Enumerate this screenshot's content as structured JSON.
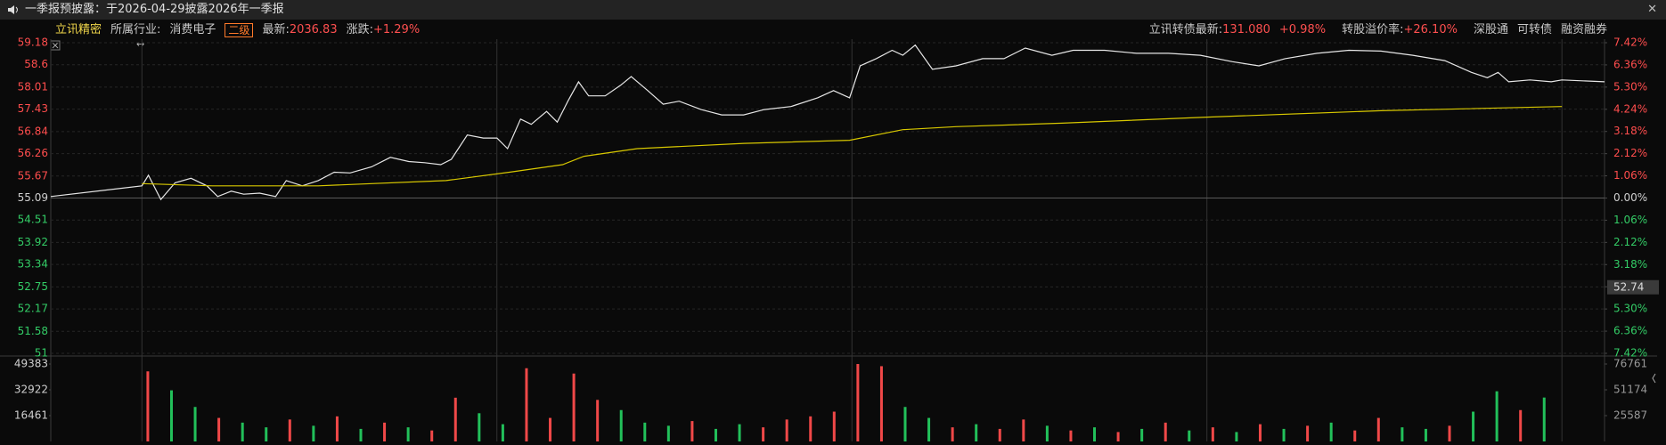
{
  "banner": {
    "text": "一季报预披露：于2026-04-29披露2026年一季报"
  },
  "header": {
    "stock_name": "立讯精密",
    "industry_label": "所属行业:",
    "industry": "消费电子",
    "level_badge": "二级",
    "latest_label": "最新:",
    "latest_value": "2036.83",
    "change_label": "涨跌:",
    "change_value": "+1.29%",
    "bond_label": "立讯转债最新:",
    "bond_price": "131.080",
    "bond_change": "+0.98%",
    "premium_label": "转股溢价率:",
    "premium_value": "+26.10%",
    "tags": [
      "深股通",
      "可转债",
      "融资融券"
    ]
  },
  "chart_data": {
    "type": "line",
    "xlim": [
      -15.4,
      247.2
    ],
    "xticks": [
      0,
      60,
      120,
      180,
      240
    ],
    "ylim": [
      51.0,
      59.18
    ],
    "yticks": [
      59.18,
      58.6,
      58.01,
      57.43,
      56.84,
      56.26,
      55.67,
      55.09,
      54.51,
      53.92,
      53.34,
      52.75,
      52.17,
      51.58,
      51.0
    ],
    "prev_close": 55.09,
    "y2lim": [
      -7.42,
      7.42
    ],
    "y2ticks": [
      {
        "value": 7.42,
        "label": "7.42%"
      },
      {
        "value": 6.36,
        "label": "6.36%"
      },
      {
        "value": 5.3,
        "label": "5.30%"
      },
      {
        "value": 4.24,
        "label": "4.24%"
      },
      {
        "value": 3.18,
        "label": "3.18%"
      },
      {
        "value": 2.12,
        "label": "2.12%"
      },
      {
        "value": 1.06,
        "label": "1.06%"
      },
      {
        "value": 0,
        "label": "0.00%"
      },
      {
        "value": -1.06,
        "label": "1.06%"
      },
      {
        "value": -2.12,
        "label": "2.12%"
      },
      {
        "value": -3.18,
        "label": "3.18%"
      },
      {
        "value": -4.24,
        "label": "4.24%"
      },
      {
        "value": -5.3,
        "label": "5.30%"
      },
      {
        "value": -6.36,
        "label": "6.36%"
      },
      {
        "value": -7.42,
        "label": "7.42%"
      }
    ],
    "cursor_price": 52.74,
    "series": [
      {
        "color": "#e6e6e6",
        "x": [
          -15.4,
          0,
          1.1,
          3.2,
          5.6,
          8.3,
          11,
          12.8,
          15.1,
          17.2,
          19.9,
          22.6,
          24.4,
          27.1,
          29.8,
          32.5,
          35.2,
          38.8,
          42,
          45.1,
          47.8,
          50.5,
          52.3,
          55,
          57.7,
          60,
          61.8,
          64,
          65.8,
          68.4,
          70.2,
          72,
          73.8,
          75.5,
          78.3,
          80.9,
          82.7,
          85.5,
          88.1,
          90.8,
          94.5,
          98,
          101.7,
          105.2,
          109.7,
          114.2,
          116.9,
          119.6,
          121.4,
          124.1,
          126.8,
          128.6,
          130.7,
          133.6,
          137.6,
          142.1,
          145.7,
          149.3,
          153.8,
          157.4,
          162.7,
          168.1,
          173.5,
          178.9,
          184.3,
          188.8,
          193.2,
          198.6,
          204,
          209.4,
          214.8,
          220.2,
          224.7,
          227.4,
          229.2,
          231,
          234.6,
          238.2,
          240,
          247.2
        ],
        "values": [
          55.13,
          55.41,
          55.69,
          55.05,
          55.49,
          55.61,
          55.41,
          55.13,
          55.27,
          55.19,
          55.22,
          55.13,
          55.55,
          55.41,
          55.55,
          55.77,
          55.75,
          55.91,
          56.16,
          56.05,
          56.02,
          55.97,
          56.11,
          56.75,
          56.67,
          56.67,
          56.39,
          57.17,
          57.03,
          57.37,
          57.09,
          57.64,
          58.15,
          57.78,
          57.78,
          58.06,
          58.29,
          57.92,
          57.56,
          57.64,
          57.42,
          57.28,
          57.28,
          57.42,
          57.5,
          57.73,
          57.92,
          57.73,
          58.57,
          58.76,
          58.98,
          58.85,
          59.12,
          58.48,
          58.57,
          58.76,
          58.76,
          59.04,
          58.85,
          58.98,
          58.98,
          58.9,
          58.9,
          58.85,
          58.68,
          58.57,
          58.76,
          58.9,
          58.98,
          58.96,
          58.85,
          58.71,
          58.4,
          58.26,
          58.4,
          58.15,
          58.2,
          58.15,
          58.2,
          58.15
        ]
      },
      {
        "color": "#d8c800",
        "x": [
          0,
          11.9,
          29.8,
          51.4,
          62.1,
          71.1,
          74.7,
          83.7,
          101.7,
          119.6,
          128.6,
          137.6,
          155.5,
          180,
          209.4,
          240
        ],
        "values": [
          55.47,
          55.41,
          55.41,
          55.55,
          55.77,
          55.97,
          56.19,
          56.39,
          56.53,
          56.61,
          56.89,
          56.97,
          57.06,
          57.22,
          57.39,
          57.5
        ]
      }
    ],
    "volume": {
      "ylim": [
        0,
        49383
      ],
      "yticks": [
        16461,
        32922,
        49383
      ],
      "y2lim": [
        0,
        76761
      ],
      "y2ticks": [
        25587,
        51174,
        76761
      ],
      "x": [
        1,
        5,
        9,
        13,
        17,
        21,
        25,
        29,
        33,
        37,
        41,
        45,
        49,
        53,
        57,
        61,
        65,
        69,
        73,
        77,
        81,
        85,
        89,
        93,
        97,
        101,
        105,
        109,
        113,
        117,
        121,
        125,
        129,
        133,
        137,
        141,
        145,
        149,
        153,
        157,
        161,
        165,
        169,
        173,
        177,
        181,
        185,
        189,
        193,
        197,
        201,
        205,
        209,
        213,
        217,
        221,
        225,
        229,
        233,
        237
      ],
      "values": [
        44700,
        32600,
        22000,
        15000,
        12000,
        9000,
        14000,
        10000,
        16000,
        8000,
        12000,
        9000,
        7000,
        27900,
        18000,
        11000,
        46700,
        15000,
        43300,
        26500,
        20000,
        12000,
        10000,
        13000,
        8000,
        11000,
        9000,
        14000,
        16000,
        19000,
        49380,
        48000,
        22000,
        15000,
        9000,
        11000,
        8000,
        14000,
        10000,
        7000,
        9000,
        6000,
        8000,
        12000,
        7000,
        9000,
        6000,
        11000,
        8000,
        10000,
        12000,
        7000,
        15000,
        9000,
        8000,
        10000,
        19000,
        32000,
        20000,
        28000
      ],
      "colors": [
        "#f04848",
        "#22c05a",
        "#22c05a",
        "#f04848",
        "#22c05a",
        "#22c05a",
        "#f04848",
        "#22c05a",
        "#f04848",
        "#22c05a",
        "#f04848",
        "#22c05a",
        "#f04848",
        "#f04848",
        "#22c05a",
        "#22c05a",
        "#f04848",
        "#f04848",
        "#f04848",
        "#f04848",
        "#22c05a",
        "#22c05a",
        "#22c05a",
        "#f04848",
        "#22c05a",
        "#22c05a",
        "#f04848",
        "#f04848",
        "#f04848",
        "#f04848",
        "#f04848",
        "#f04848",
        "#22c05a",
        "#22c05a",
        "#f04848",
        "#22c05a",
        "#f04848",
        "#f04848",
        "#22c05a",
        "#f04848",
        "#22c05a",
        "#f04848",
        "#22c05a",
        "#f04848",
        "#22c05a",
        "#f04848",
        "#22c05a",
        "#f04848",
        "#22c05a",
        "#f04848",
        "#22c05a",
        "#f04848",
        "#f04848",
        "#22c05a",
        "#22c05a",
        "#f04848",
        "#22c05a",
        "#22c05a",
        "#f04848",
        "#22c05a"
      ]
    }
  }
}
